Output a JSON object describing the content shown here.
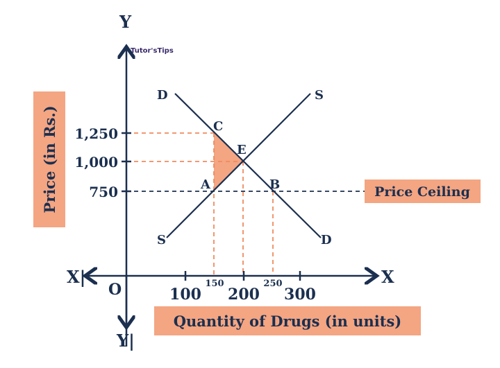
{
  "logo": {
    "text": "Tutor'sTips"
  },
  "axes": {
    "y_top": "Y",
    "y_bottom": "Y|",
    "x_right": "X",
    "x_left": "X|",
    "origin": "O"
  },
  "y_label": "Price (in Rs.)",
  "x_label": "Quantity of Drugs (in units)",
  "y_ticks": [
    "1,250",
    "1,000",
    "750"
  ],
  "x_ticks": [
    "100",
    "200",
    "300"
  ],
  "x_small_ticks": [
    "150",
    "250"
  ],
  "curves": {
    "demand_start": "D",
    "demand_end": "D",
    "supply_start": "S",
    "supply_end": "S"
  },
  "points": {
    "C": "C",
    "E": "E",
    "A": "A",
    "B": "B"
  },
  "price_ceiling_label": "Price Ceiling",
  "colors": {
    "navy": "#1b2f4f",
    "accent": "#f4a582",
    "dashed": "#f08a5d"
  }
}
